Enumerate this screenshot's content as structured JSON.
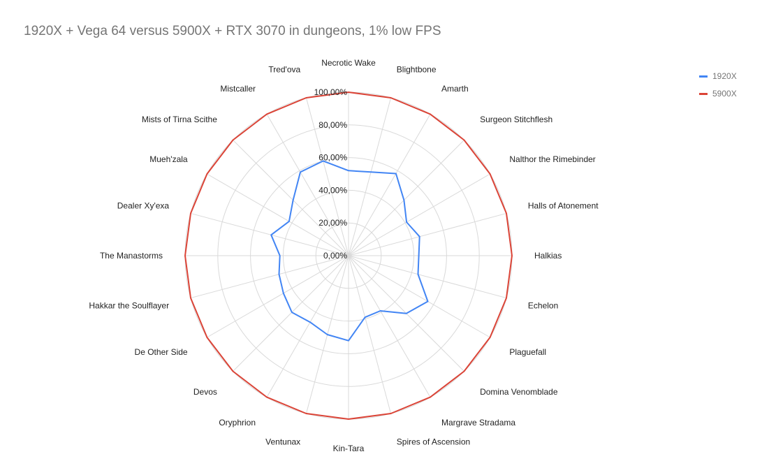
{
  "chart_data": {
    "type": "radar",
    "title": "1920X + Vega 64 versus 5900X + RTX 3070 in dungeons, 1% low FPS",
    "categories": [
      "Necrotic Wake",
      "Blightbone",
      "Amarth",
      "Surgeon Stitchflesh",
      "Nalthor the Rimebinder",
      "Halls of Atonement",
      "Halkias",
      "Echelon",
      "Plaguefall",
      "Domina Venomblade",
      "Margrave Stradama",
      "Spires of Ascension",
      "Kin-Tara",
      "Ventunax",
      "Oryphrion",
      "Devos",
      "De Other Side",
      "Hakkar the Soulflayer",
      "The Manastorms",
      "Dealer Xy'exa",
      "Mueh'zala",
      "Mists of Tirna Scithe",
      "Mistcaller",
      "Tred'ova"
    ],
    "tick_labels": [
      "0,00%",
      "20,00%",
      "40,00%",
      "60,00%",
      "80,00%",
      "100,00%"
    ],
    "ylim": [
      0,
      100
    ],
    "grid": true,
    "legend_position": "right",
    "series": [
      {
        "name": "1920X",
        "color": "#4285f4",
        "values": [
          52,
          53,
          58,
          48,
          41,
          45,
          43,
          44,
          56,
          50,
          39,
          39,
          52,
          50,
          47,
          49,
          46,
          44,
          42,
          49,
          42,
          48,
          59,
          60
        ]
      },
      {
        "name": "5900X",
        "color": "#db4437",
        "values": [
          100,
          100,
          100,
          100,
          100,
          100,
          100,
          100,
          100,
          100,
          100,
          100,
          100,
          100,
          100,
          100,
          100,
          100,
          100,
          100,
          100,
          100,
          100,
          100
        ]
      }
    ]
  }
}
